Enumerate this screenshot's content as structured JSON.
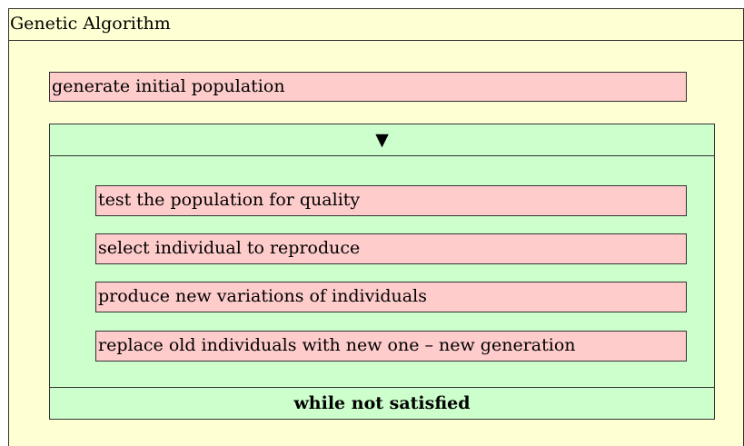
{
  "title": "Genetic Algorithm",
  "steps": [
    {
      "label": "generate initial population"
    }
  ],
  "loop": {
    "marker": "▼",
    "body": [
      {
        "label": "test the population for quality"
      },
      {
        "label": "select individual to reproduce"
      },
      {
        "label": "produce new variations of individuals"
      },
      {
        "label": "replace old individuals with new one – new generation"
      }
    ],
    "condition": "while not satisfied"
  }
}
